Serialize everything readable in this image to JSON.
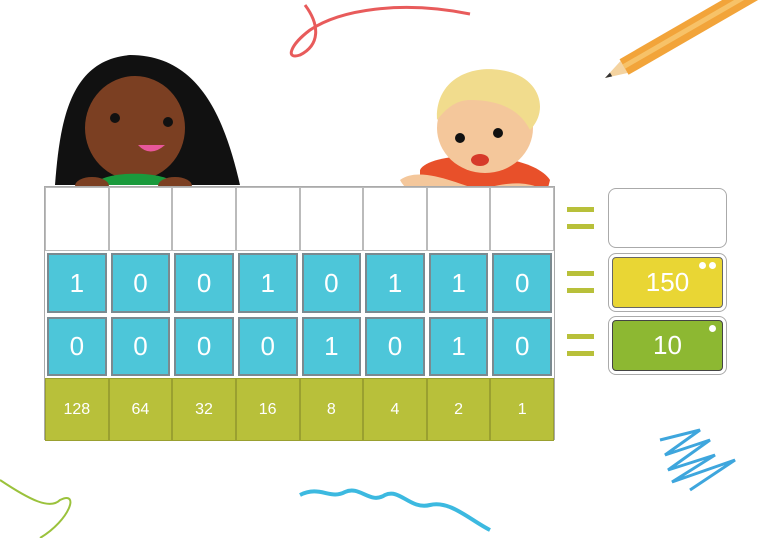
{
  "bits_row_1": [
    "1",
    "0",
    "0",
    "1",
    "0",
    "1",
    "1",
    "0"
  ],
  "bits_row_2": [
    "0",
    "0",
    "0",
    "0",
    "1",
    "0",
    "1",
    "0"
  ],
  "place_values": [
    "128",
    "64",
    "32",
    "16",
    "8",
    "4",
    "2",
    "1"
  ],
  "results": {
    "answer": "",
    "row_1_value": "150",
    "row_1_dots": 2,
    "row_2_value": "10",
    "row_2_dots": 1
  },
  "colors": {
    "bit_tile": "#4dc6d9",
    "place_row": "#b8c03a",
    "row_1_box": "#e9d634",
    "row_2_box": "#8db832"
  }
}
